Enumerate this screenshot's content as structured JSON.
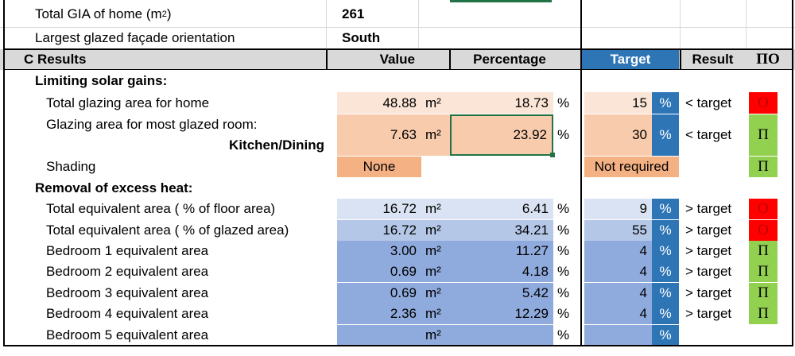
{
  "colors": {
    "peach_light": "#fbe5d6",
    "peach": "#f8cbad",
    "peach_dark": "#f4b183",
    "blue_lightest": "#dae3f3",
    "blue_light": "#b4c7e7",
    "blue_mid": "#8faadc",
    "blue_target": "#2e75b6",
    "red": "#ff0000",
    "green": "#92d050",
    "result_red_text": "#c00000"
  },
  "info": {
    "gia_label_pre": "Total GIA of home (m",
    "gia_sup": "2",
    "gia_label_post": ")",
    "gia_value": "261",
    "facade_label": "Largest glazed façade orientation",
    "facade_value": "South"
  },
  "header": {
    "section": "C Results",
    "value": "Value",
    "percentage": "Percentage",
    "target": "Target",
    "result": "Result",
    "flag": "ΠΟ"
  },
  "solar": {
    "title": "Limiting solar gains:",
    "total_glazing": {
      "label": "Total glazing area for home",
      "value": "48.88",
      "value_unit": "m²",
      "pct": "18.73",
      "pct_unit": "%",
      "target": "15",
      "target_unit": "%",
      "result": "< target",
      "flag": "О"
    },
    "most_glazed": {
      "label": "Glazing area for most glazed room:",
      "room": "Kitchen/Dining",
      "value": "7.63",
      "value_unit": "m²",
      "pct": "23.92",
      "pct_unit": "%",
      "target": "30",
      "target_unit": "%",
      "result": "< target",
      "flag": "П"
    },
    "shading": {
      "label": "Shading",
      "value": "None",
      "target": "Not required",
      "flag": "П"
    }
  },
  "excess": {
    "title": "Removal of excess heat:",
    "rows": [
      {
        "label": "Total equivalent area ( % of floor area)",
        "value": "16.72",
        "value_unit": "m²",
        "pct": "6.41",
        "pct_unit": "%",
        "target": "9",
        "target_unit": "%",
        "result": "> target",
        "flag": "О"
      },
      {
        "label": "Total equivalent area ( % of glazed area)",
        "value": "16.72",
        "value_unit": "m²",
        "pct": "34.21",
        "pct_unit": "%",
        "target": "55",
        "target_unit": "%",
        "result": "> target",
        "flag": "О"
      },
      {
        "label": "Bedroom 1 equivalent area",
        "value": "3.00",
        "value_unit": "m²",
        "pct": "11.27",
        "pct_unit": "%",
        "target": "4",
        "target_unit": "%",
        "result": "> target",
        "flag": "П"
      },
      {
        "label": "Bedroom 2 equivalent area",
        "value": "0.69",
        "value_unit": "m²",
        "pct": "4.18",
        "pct_unit": "%",
        "target": "4",
        "target_unit": "%",
        "result": "> target",
        "flag": "П"
      },
      {
        "label": "Bedroom 3 equivalent area",
        "value": "0.69",
        "value_unit": "m²",
        "pct": "5.42",
        "pct_unit": "%",
        "target": "4",
        "target_unit": "%",
        "result": "> target",
        "flag": "П"
      },
      {
        "label": "Bedroom 4 equivalent area",
        "value": "2.36",
        "value_unit": "m²",
        "pct": "12.29",
        "pct_unit": "%",
        "target": "4",
        "target_unit": "%",
        "result": "> target",
        "flag": "П"
      },
      {
        "label": "Bedroom 5 equivalent area",
        "value": "",
        "value_unit": "m²",
        "pct": "",
        "pct_unit": "%",
        "target": "",
        "target_unit": "%",
        "result": "",
        "flag": ""
      }
    ]
  }
}
